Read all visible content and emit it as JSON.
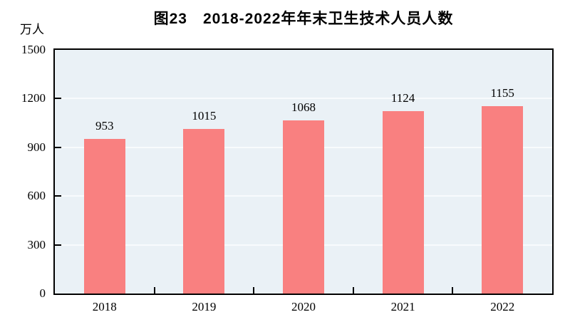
{
  "chart_data": {
    "type": "bar",
    "title": "图23　2018-2022年年末卫生技术人员人数",
    "ylabel": "万人",
    "xlabel": "",
    "categories": [
      "2018",
      "2019",
      "2020",
      "2021",
      "2022"
    ],
    "values": [
      953,
      1015,
      1068,
      1124,
      1155
    ],
    "ylim": [
      0,
      1500
    ],
    "yticks": [
      0,
      300,
      600,
      900,
      1200,
      1500
    ],
    "grid": true,
    "legend_position": "none",
    "colors": {
      "bar_fill": "#f98080",
      "plot_background": "#eaf1f6",
      "gridline": "#f8fbfd",
      "axis": "#000000",
      "text": "#000000"
    }
  }
}
